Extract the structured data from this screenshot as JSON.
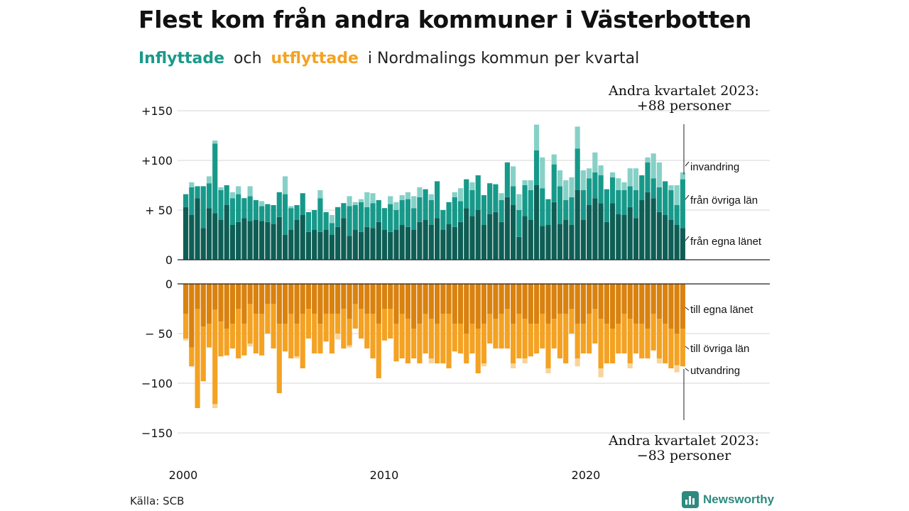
{
  "title": "Flest kom från andra kommuner i Västerbotten",
  "subtitle": {
    "part_in": "Inflyttade",
    "part_and": "och",
    "part_out": "utflyttade",
    "part_rest": "i Nordmalings  kommun  per  kvartal"
  },
  "source": "Källa: SCB",
  "brand": "Newsworthy",
  "colors": {
    "in_own": "#0e5e55",
    "in_other": "#17998a",
    "in_immig": "#86d1c7",
    "out_own": "#d9820f",
    "out_other": "#f4a223",
    "out_emig": "#f7d49b",
    "grid": "#dddddd"
  },
  "chart_data": {
    "type": "bar",
    "stacked": true,
    "x_ticks": [
      "2000",
      "2010",
      "2020"
    ],
    "x_first_year": 2000,
    "y_ticks_top": [
      "+150",
      "+100",
      "+ 50",
      "0"
    ],
    "y_ticks_bottom": [
      "0",
      "− 50",
      "−100",
      "−150"
    ],
    "ylim_top": [
      0,
      150
    ],
    "ylim_bottom": [
      -150,
      0
    ],
    "annotation_top": [
      "Andra kvartalet 2023:",
      "+88 personer"
    ],
    "annotation_bottom": [
      "Andra kvartalet 2023:",
      "−83 personer"
    ],
    "series_in": [
      {
        "name": "från egna länet",
        "values": [
          53,
          45,
          62,
          32,
          52,
          47,
          40,
          55,
          35,
          38,
          42,
          39,
          40,
          39,
          38,
          36,
          43,
          25,
          30,
          40,
          45,
          28,
          30,
          28,
          30,
          25,
          33,
          42,
          24,
          30,
          28,
          33,
          32,
          38,
          30,
          28,
          30,
          35,
          33,
          30,
          38,
          40,
          35,
          42,
          30,
          36,
          33,
          38,
          52,
          44,
          50,
          35,
          46,
          48,
          38,
          63,
          55,
          23,
          44,
          40,
          75,
          34,
          35,
          58,
          36,
          40,
          35,
          70,
          40,
          55,
          62,
          57,
          38,
          57,
          46,
          45,
          53,
          42,
          60,
          68,
          62,
          48,
          45,
          40,
          35,
          32
        ]
      },
      {
        "name": "från övriga län",
        "values": [
          13,
          28,
          12,
          42,
          25,
          70,
          30,
          20,
          27,
          28,
          20,
          25,
          20,
          15,
          18,
          19,
          25,
          41,
          22,
          15,
          22,
          20,
          20,
          34,
          18,
          12,
          20,
          15,
          30,
          25,
          30,
          20,
          25,
          22,
          22,
          28,
          20,
          25,
          28,
          22,
          25,
          31,
          25,
          37,
          20,
          22,
          30,
          21,
          29,
          26,
          35,
          30,
          31,
          28,
          22,
          35,
          19,
          27,
          31,
          30,
          35,
          38,
          26,
          38,
          38,
          20,
          28,
          42,
          30,
          27,
          26,
          28,
          33,
          26,
          24,
          25,
          21,
          28,
          25,
          30,
          20,
          25,
          34,
          30,
          20,
          49
        ]
      },
      {
        "name": "invandring",
        "values": [
          0,
          5,
          0,
          0,
          7,
          3,
          3,
          0,
          6,
          8,
          0,
          10,
          0,
          5,
          0,
          0,
          0,
          18,
          2,
          0,
          0,
          0,
          0,
          8,
          0,
          8,
          0,
          0,
          10,
          3,
          3,
          15,
          10,
          0,
          0,
          8,
          8,
          5,
          7,
          12,
          10,
          0,
          6,
          0,
          0,
          0,
          5,
          13,
          0,
          8,
          0,
          0,
          0,
          0,
          7,
          0,
          20,
          16,
          5,
          10,
          26,
          31,
          0,
          10,
          16,
          20,
          20,
          22,
          20,
          10,
          20,
          10,
          0,
          5,
          12,
          8,
          18,
          22,
          0,
          5,
          25,
          25,
          0,
          5,
          20,
          7
        ]
      }
    ],
    "series_out": [
      {
        "name": "till egna länet",
        "values": [
          -30,
          -64,
          -25,
          -43,
          -40,
          -26,
          -38,
          -45,
          -40,
          -25,
          -40,
          -20,
          -30,
          -30,
          -20,
          -20,
          -40,
          -40,
          -30,
          -40,
          -30,
          -25,
          -30,
          -40,
          -30,
          -30,
          -30,
          -25,
          -35,
          -20,
          -25,
          -30,
          -30,
          -40,
          -25,
          -25,
          -40,
          -30,
          -35,
          -45,
          -40,
          -30,
          -35,
          -40,
          -30,
          -30,
          -40,
          -40,
          -50,
          -40,
          -45,
          -40,
          -30,
          -35,
          -30,
          -25,
          -40,
          -30,
          -35,
          -40,
          -40,
          -30,
          -40,
          -35,
          -30,
          -30,
          -25,
          -40,
          -40,
          -30,
          -25,
          -35,
          -40,
          -45,
          -40,
          -30,
          -35,
          -40,
          -40,
          -45,
          -30,
          -35,
          -40,
          -45,
          -50,
          -45
        ]
      },
      {
        "name": "till övriga län",
        "values": [
          -25,
          -19,
          -100,
          -55,
          -24,
          -95,
          -35,
          -27,
          -25,
          -50,
          -32,
          -40,
          -40,
          -42,
          -30,
          -45,
          -70,
          -28,
          -45,
          -33,
          -55,
          -30,
          -40,
          -30,
          -28,
          -40,
          -20,
          -40,
          -27,
          -25,
          -30,
          -35,
          -45,
          -55,
          -32,
          -30,
          -38,
          -45,
          -45,
          -30,
          -40,
          -40,
          -40,
          -40,
          -50,
          -55,
          -28,
          -30,
          -30,
          -30,
          -45,
          -40,
          -30,
          -30,
          -35,
          -40,
          -40,
          -45,
          -40,
          -33,
          -30,
          -35,
          -45,
          -30,
          -45,
          -50,
          -25,
          -35,
          -30,
          -40,
          -35,
          -50,
          -40,
          -35,
          -30,
          -40,
          -45,
          -30,
          -35,
          -30,
          -37,
          -40,
          -40,
          -40,
          -32,
          -38
        ]
      },
      {
        "name": "utvandring",
        "values": [
          -2,
          0,
          0,
          0,
          0,
          -4,
          0,
          0,
          0,
          0,
          0,
          -3,
          0,
          0,
          0,
          0,
          0,
          0,
          0,
          -2,
          0,
          0,
          0,
          0,
          0,
          0,
          -6,
          0,
          -2,
          0,
          0,
          0,
          0,
          0,
          0,
          0,
          0,
          0,
          0,
          0,
          0,
          0,
          -5,
          0,
          0,
          0,
          0,
          0,
          0,
          0,
          0,
          -3,
          0,
          0,
          0,
          0,
          -5,
          0,
          -5,
          0,
          0,
          0,
          -5,
          0,
          0,
          0,
          0,
          -8,
          0,
          0,
          0,
          -9,
          0,
          0,
          0,
          0,
          -5,
          0,
          0,
          0,
          0,
          -5,
          0,
          0,
          -7,
          0
        ]
      }
    ],
    "legend": "inline-right"
  }
}
